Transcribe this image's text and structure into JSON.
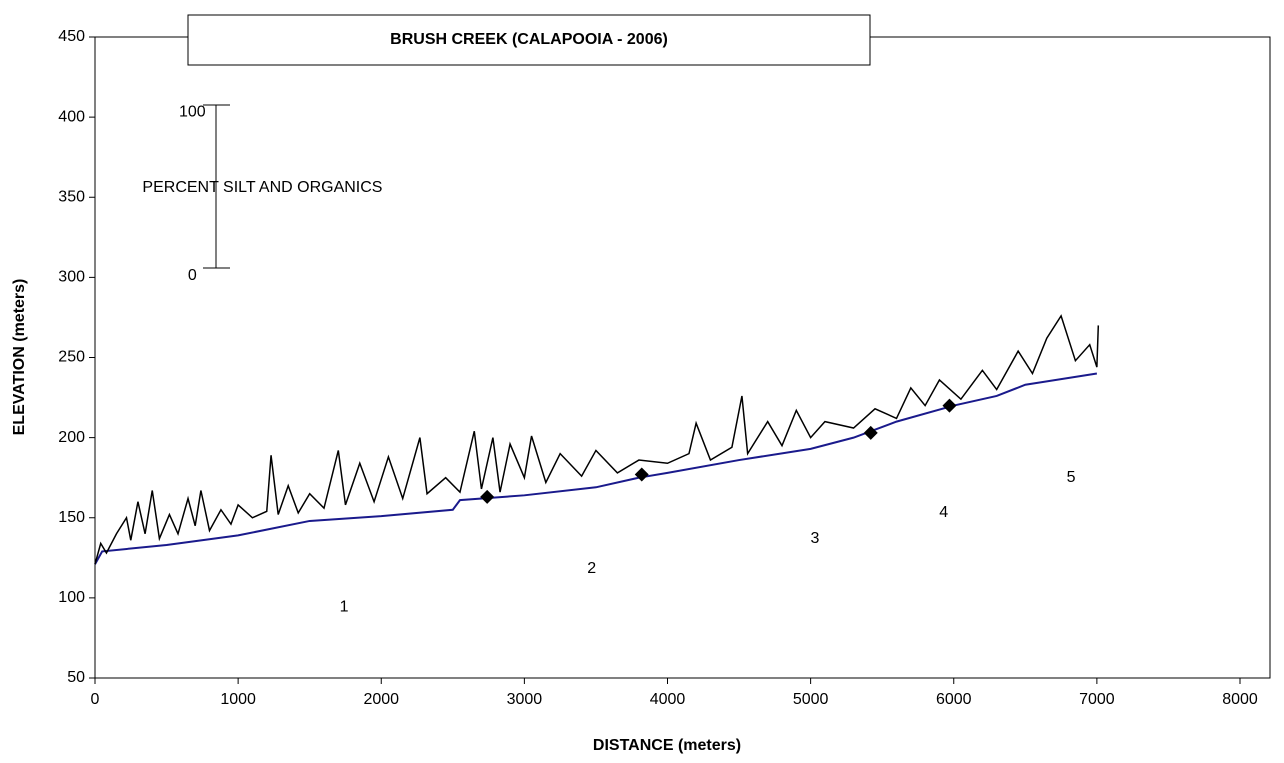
{
  "chart_data": {
    "type": "line",
    "title": "BRUSH CREEK (CALAPOOIA - 2006)",
    "x_label": "DISTANCE (meters)",
    "y_label": "ELEVATION (meters)",
    "xlim": [
      0,
      8000
    ],
    "xticks": [
      0,
      1000,
      2000,
      3000,
      4000,
      5000,
      6000,
      7000,
      8000
    ],
    "ylim": [
      50,
      450
    ],
    "yticks": [
      50,
      100,
      150,
      200,
      250,
      300,
      350,
      400,
      450
    ],
    "series": [
      {
        "type": "line",
        "color": "#1a1a8c",
        "x": [
          0,
          50,
          500,
          1000,
          1500,
          2000,
          2500,
          2550,
          3000,
          3500,
          3800,
          4000,
          4500,
          5000,
          5300,
          5600,
          6000,
          6300,
          6500,
          7000
        ],
        "values": [
          121,
          129,
          133,
          139,
          148,
          151,
          155,
          161,
          164,
          169,
          175,
          178,
          186,
          193,
          200,
          210,
          220,
          226,
          233,
          240
        ]
      },
      {
        "type": "line",
        "color": "#000000",
        "x": [
          0,
          40,
          80,
          150,
          220,
          250,
          300,
          350,
          400,
          450,
          520,
          580,
          650,
          700,
          740,
          800,
          880,
          950,
          1000,
          1100,
          1200,
          1230,
          1280,
          1350,
          1420,
          1500,
          1600,
          1700,
          1750,
          1850,
          1950,
          2050,
          2150,
          2270,
          2320,
          2450,
          2550,
          2650,
          2700,
          2780,
          2830,
          2900,
          3000,
          3050,
          3150,
          3250,
          3400,
          3500,
          3650,
          3800,
          4000,
          4150,
          4200,
          4300,
          4450,
          4520,
          4560,
          4700,
          4800,
          4900,
          5000,
          5100,
          5300,
          5450,
          5600,
          5700,
          5800,
          5900,
          6050,
          6200,
          6300,
          6450,
          6550,
          6650,
          6750,
          6850,
          6950,
          7000,
          7010
        ],
        "values": [
          121,
          134,
          128,
          140,
          150,
          136,
          160,
          140,
          167,
          137,
          152,
          140,
          162,
          145,
          167,
          142,
          155,
          146,
          158,
          150,
          154,
          189,
          152,
          170,
          153,
          165,
          156,
          192,
          158,
          184,
          160,
          188,
          162,
          200,
          165,
          175,
          166,
          204,
          168,
          200,
          166,
          196,
          175,
          201,
          172,
          190,
          176,
          192,
          178,
          186,
          184,
          190,
          209,
          186,
          194,
          226,
          190,
          210,
          195,
          217,
          200,
          210,
          206,
          218,
          212,
          231,
          220,
          236,
          224,
          242,
          230,
          254,
          240,
          262,
          276,
          248,
          258,
          244,
          270
        ]
      },
      {
        "type": "scatter",
        "color": "#000000",
        "x": [
          2740,
          3820,
          5420,
          5970
        ],
        "values": [
          163,
          177,
          203,
          220
        ]
      }
    ],
    "annotations": [
      {
        "text": "1",
        "x": 1740,
        "y": 94
      },
      {
        "text": "2",
        "x": 3470,
        "y": 118
      },
      {
        "text": "3",
        "x": 5030,
        "y": 137
      },
      {
        "text": "4",
        "x": 5930,
        "y": 153
      },
      {
        "text": "5",
        "x": 6820,
        "y": 175
      },
      {
        "text": "100",
        "x": 680,
        "y": 403
      },
      {
        "text": "0",
        "x": 680,
        "y": 301
      },
      {
        "text": "PERCENT SILT AND ORGANICS",
        "x": 1170,
        "y": 356
      }
    ]
  }
}
